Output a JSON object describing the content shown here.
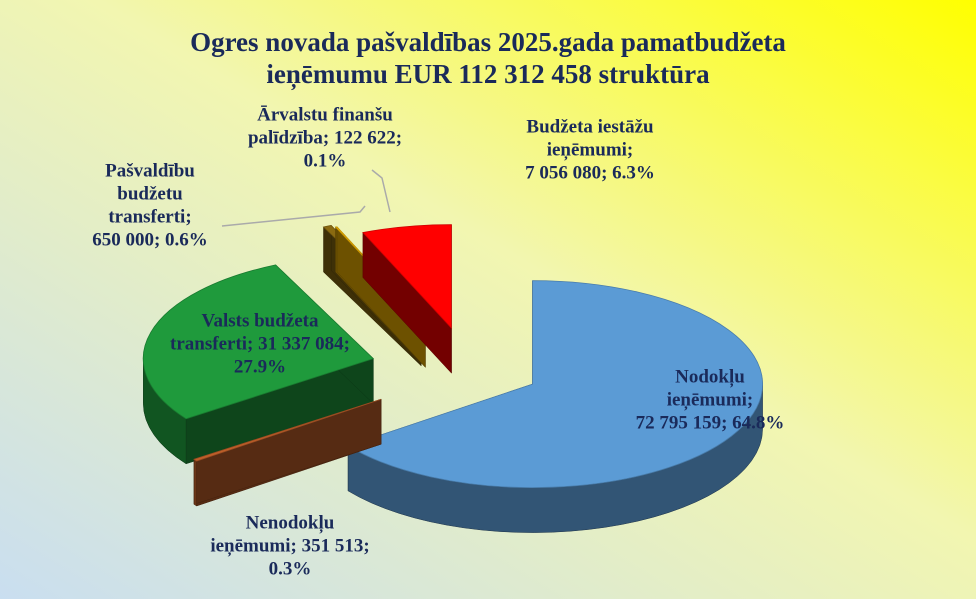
{
  "chart_data": {
    "type": "pie3d",
    "title": [
      "Ogres novada pašvaldības 2025.gada pamatbudžeta",
      "ieņēmumu EUR 112 312 458 struktūra"
    ],
    "values": [
      72795159,
      351513,
      31337084,
      650000,
      122622,
      7056080
    ],
    "value_labels": [
      [
        "Nodokļu",
        "ieņēmumi;",
        "72 795 159; 64.8%"
      ],
      [
        "Nenodokļu",
        "ieņēmumi; 351 513;",
        "0.3%"
      ],
      [
        "Valsts budžeta",
        "transferti; 31 337 084;",
        "27.9%"
      ],
      [
        "Pašvaldību",
        "budžetu",
        "transferti;",
        "650 000; 0.6%"
      ],
      [
        "Ārvalstu finanšu",
        "palīdzība; 122 622;",
        "0.1%"
      ],
      [
        "Budžeta iestāžu",
        "ieņēmumi;",
        "7 056 080; 6.3%"
      ]
    ],
    "colors": [
      "#5b9bd5",
      "#c0602a",
      "#1f9a3c",
      "#8a6a10",
      "#f2b500",
      "#ff0000"
    ]
  }
}
